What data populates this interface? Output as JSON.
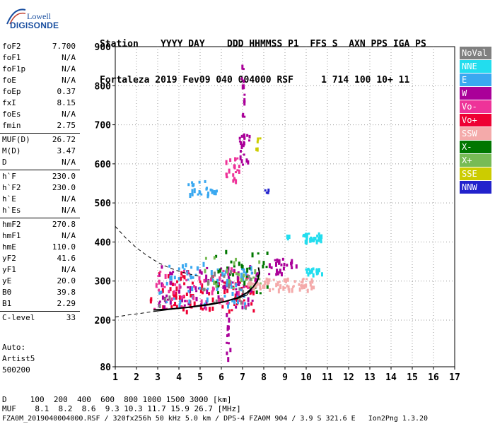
{
  "logo": {
    "line1": "Lowell",
    "line2": "DIGISONDE"
  },
  "header": {
    "line1": "Station    YYYY DAY    DDD HHMMSS P1  FFS S  AXN PPS IGA PS",
    "line2": "Fortaleza 2019 Fev09 040 004000 RSF     1 714 100 10+ 11"
  },
  "parameters": [
    {
      "label": "foF2",
      "value": "7.700"
    },
    {
      "label": "foF1",
      "value": "N/A"
    },
    {
      "label": "foF1p",
      "value": "N/A"
    },
    {
      "label": "foE",
      "value": "N/A"
    },
    {
      "label": "foEp",
      "value": "0.37"
    },
    {
      "label": "fxI",
      "value": "8.15"
    },
    {
      "label": "foEs",
      "value": "N/A"
    },
    {
      "label": "fmin",
      "value": "2.75"
    },
    {
      "label": "MUF(D)",
      "value": "26.72"
    },
    {
      "label": "M(D)",
      "value": "3.47"
    },
    {
      "label": "D",
      "value": "N/A"
    },
    {
      "label": "h`F",
      "value": "230.0"
    },
    {
      "label": "h`F2",
      "value": "230.0"
    },
    {
      "label": "h`E",
      "value": "N/A"
    },
    {
      "label": "h`Es",
      "value": "N/A"
    },
    {
      "label": "hmF2",
      "value": "270.8"
    },
    {
      "label": "hmF1",
      "value": "N/A"
    },
    {
      "label": "hmE",
      "value": "110.0"
    },
    {
      "label": "yF2",
      "value": "41.6"
    },
    {
      "label": "yF1",
      "value": "N/A"
    },
    {
      "label": "yE",
      "value": "20.0"
    },
    {
      "label": "B0",
      "value": "39.8"
    },
    {
      "label": "B1",
      "value": "2.29"
    },
    {
      "label": "C-level",
      "value": "33"
    }
  ],
  "auto": {
    "line1": "Auto:",
    "line2": "Artist5",
    "line3": "500200"
  },
  "footer": {
    "line1": "D     100  200  400  600  800 1000 1500 3000 [km]",
    "line2": "MUF    8.1  8.2  8.6  9.3 10.3 11.7 15.9 26.7 [MHz]",
    "line3": "FZA0M_2019040004000.RSF / 320fx256h 50 kHz 5.0 km / DPS-4 FZA0M 904 / 3.9 S 321.6 E   Ion2Png 1.3.20"
  },
  "chart_data": {
    "type": "scatter",
    "title": "",
    "xlabel": "",
    "ylabel": "",
    "xlim": [
      1,
      17
    ],
    "ylim": [
      80,
      900
    ],
    "xticks": [
      "1",
      "2",
      "3",
      "4",
      "5",
      "6",
      "7",
      "8",
      "9",
      "10",
      "11",
      "12",
      "13",
      "14",
      "15",
      "16",
      "17"
    ],
    "yticks": [
      {
        "value": 900,
        "label": "900"
      },
      {
        "value": 800,
        "label": "800"
      },
      {
        "value": 700,
        "label": "700"
      },
      {
        "value": 600,
        "label": "600"
      },
      {
        "value": 500,
        "label": "500"
      },
      {
        "value": 400,
        "label": "400"
      },
      {
        "value": 300,
        "label": "300"
      },
      {
        "value": 200,
        "label": "200"
      },
      {
        "value": 80,
        "label": "80"
      }
    ],
    "legend_position": "right",
    "legend": [
      {
        "label": "NoVal",
        "color": "#808080"
      },
      {
        "label": "NNE",
        "color": "#22ddee"
      },
      {
        "label": "E",
        "color": "#3aa8f0"
      },
      {
        "label": "W",
        "color": "#aa0099"
      },
      {
        "label": "Vo-",
        "color": "#ee3399"
      },
      {
        "label": "Vo+",
        "color": "#ee0033"
      },
      {
        "label": "SSW",
        "color": "#f4aaaa"
      },
      {
        "label": "X-",
        "color": "#007700"
      },
      {
        "label": "X+",
        "color": "#77bb55"
      },
      {
        "label": "SSE",
        "color": "#cccc00"
      },
      {
        "label": "NNW",
        "color": "#2222cc"
      }
    ],
    "clusters": [
      {
        "name": "o-trace",
        "color": "#ee0033",
        "freq": [
          2.6,
          7.6
        ],
        "height": [
          225,
          330
        ],
        "n": 90
      },
      {
        "name": "o-trace-w",
        "color": "#aa0099",
        "freq": [
          3.0,
          7.7
        ],
        "height": [
          235,
          345
        ],
        "n": 80
      },
      {
        "name": "o-trace-e",
        "color": "#3aa8f0",
        "freq": [
          3.0,
          7.4
        ],
        "height": [
          240,
          350
        ],
        "n": 70
      },
      {
        "name": "o-trace-vo-",
        "color": "#ee3399",
        "freq": [
          2.8,
          7.5
        ],
        "height": [
          230,
          340
        ],
        "n": 50
      },
      {
        "name": "x-trace",
        "color": "#007700",
        "freq": [
          5.5,
          8.2
        ],
        "height": [
          270,
          380
        ],
        "n": 30
      },
      {
        "name": "x-trace-plus",
        "color": "#77bb55",
        "freq": [
          5.0,
          8.0
        ],
        "height": [
          260,
          370
        ],
        "n": 25
      },
      {
        "name": "ssw",
        "color": "#f4aaaa",
        "freq": [
          7.2,
          10.4
        ],
        "height": [
          280,
          310
        ],
        "n": 70
      },
      {
        "name": "nne-upper",
        "color": "#22ddee",
        "freq": [
          9.8,
          10.7
        ],
        "height": [
          405,
          425
        ],
        "n": 30
      },
      {
        "name": "nne-lower",
        "color": "#22ddee",
        "freq": [
          9.9,
          10.7
        ],
        "height": [
          320,
          335
        ],
        "n": 20
      },
      {
        "name": "nne-mid",
        "color": "#22ddee",
        "freq": [
          9.0,
          9.2
        ],
        "height": [
          415,
          420
        ],
        "n": 3
      },
      {
        "name": "w-mid",
        "color": "#aa0099",
        "freq": [
          8.2,
          9.5
        ],
        "height": [
          320,
          360
        ],
        "n": 25
      },
      {
        "name": "second-hop-1",
        "color": "#3aa8f0",
        "freq": [
          4.4,
          5.8
        ],
        "height": [
          520,
          560
        ],
        "n": 25
      },
      {
        "name": "second-hop-2",
        "color": "#ee3399",
        "freq": [
          6.1,
          6.8
        ],
        "height": [
          560,
          620
        ],
        "n": 20
      },
      {
        "name": "third-hop",
        "color": "#aa0099",
        "freq": [
          6.8,
          7.3
        ],
        "height": [
          600,
          680
        ],
        "n": 15
      },
      {
        "name": "vertical-spread",
        "color": "#aa0099",
        "freq": [
          6.9,
          7.05
        ],
        "height": [
          650,
          860
        ],
        "n": 25
      },
      {
        "name": "vertical-low",
        "color": "#aa0099",
        "freq": [
          6.2,
          6.4
        ],
        "height": [
          100,
          220
        ],
        "n": 12
      },
      {
        "name": "nnw",
        "color": "#2222cc",
        "freq": [
          8.0,
          8.3
        ],
        "height": [
          525,
          545
        ],
        "n": 4
      },
      {
        "name": "sse",
        "color": "#cccc00",
        "freq": [
          7.6,
          7.8
        ],
        "height": [
          630,
          670
        ],
        "n": 5
      },
      {
        "name": "noval",
        "color": "#808080",
        "freq": [
          2.8,
          7.8
        ],
        "height": [
          230,
          330
        ],
        "n": 20
      }
    ],
    "profile_curve": [
      [
        2.8,
        226
      ],
      [
        3.5,
        228
      ],
      [
        4.5,
        233
      ],
      [
        5.5,
        240
      ],
      [
        6.2,
        248
      ],
      [
        6.8,
        258
      ],
      [
        7.2,
        270
      ],
      [
        7.5,
        285
      ],
      [
        7.7,
        300
      ],
      [
        7.8,
        320
      ],
      [
        7.75,
        335
      ]
    ],
    "profile_extrapolated": [
      [
        1.0,
        440
      ],
      [
        1.5,
        410
      ],
      [
        2.0,
        385
      ],
      [
        2.5,
        365
      ],
      [
        3.0,
        348
      ],
      [
        3.5,
        335
      ],
      [
        4.0,
        325
      ],
      [
        4.5,
        318
      ],
      [
        5.0,
        312
      ]
    ],
    "profile_bottom_dashed": [
      [
        1.0,
        208
      ],
      [
        1.6,
        213
      ],
      [
        2.3,
        218
      ],
      [
        2.8,
        222
      ]
    ],
    "profile_bottom_solid": [
      [
        2.8,
        222
      ],
      [
        4.0,
        230
      ],
      [
        5.0,
        238
      ],
      [
        6.0,
        246
      ],
      [
        6.8,
        256
      ],
      [
        7.2,
        264
      ],
      [
        7.4,
        278
      ]
    ]
  }
}
